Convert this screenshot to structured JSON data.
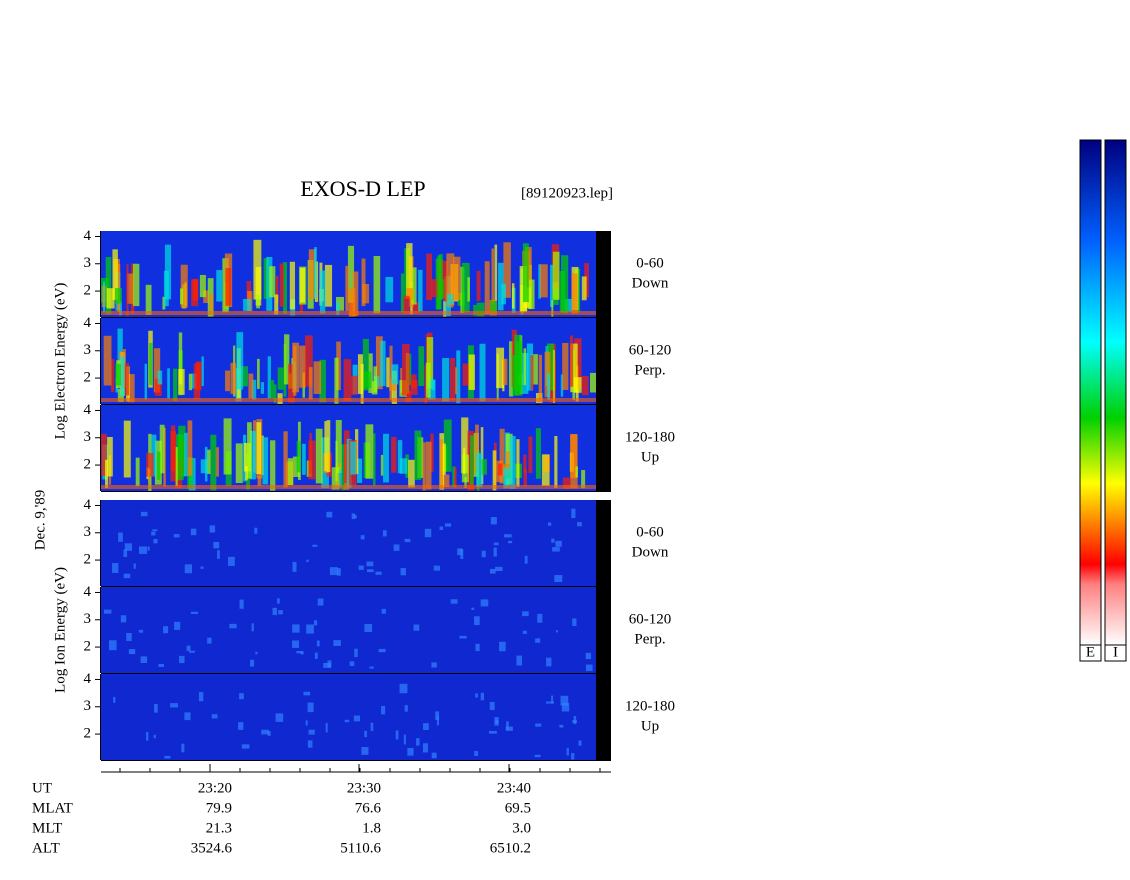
{
  "chart_data": {
    "type": "spectrogram",
    "title": "EXOS-D LEP",
    "subtitle": "[89120923.lep]",
    "date_label": "Dec. 9,'89",
    "groups": [
      {
        "ylabel": "Log  Electron  Energy (eV)",
        "panels": [
          {
            "label_top": "0-60",
            "label_bottom": "Down",
            "ylim": [
              1.05,
              4.2
            ],
            "yticks": [
              2,
              3,
              4
            ]
          },
          {
            "label_top": "60-120",
            "label_bottom": "Perp.",
            "ylim": [
              1.05,
              4.2
            ],
            "yticks": [
              2,
              3,
              4
            ]
          },
          {
            "label_top": "120-180",
            "label_bottom": "Up",
            "ylim": [
              1.05,
              4.2
            ],
            "yticks": [
              2,
              3,
              4
            ]
          }
        ]
      },
      {
        "ylabel": "Log  Ion  Energy (eV)",
        "panels": [
          {
            "label_top": "0-60",
            "label_bottom": "Down",
            "ylim": [
              1.05,
              4.2
            ],
            "yticks": [
              2,
              3,
              4
            ]
          },
          {
            "label_top": "60-120",
            "label_bottom": "Perp.",
            "ylim": [
              1.05,
              4.2
            ],
            "yticks": [
              2,
              3,
              4
            ]
          },
          {
            "label_top": "120-180",
            "label_bottom": "Up",
            "ylim": [
              1.05,
              4.2
            ],
            "yticks": [
              2,
              3,
              4
            ]
          }
        ]
      }
    ],
    "ephemeris": [
      {
        "name": "UT",
        "values": [
          "23:20",
          "23:30",
          "23:40"
        ]
      },
      {
        "name": "MLAT",
        "values": [
          "79.9",
          "76.6",
          "69.5"
        ]
      },
      {
        "name": "MLT",
        "values": [
          "21.3",
          "1.8",
          "3.0"
        ]
      },
      {
        "name": "ALT",
        "values": [
          "3524.6",
          "5110.6",
          "6510.2"
        ]
      }
    ],
    "colorbar_labels": [
      "E",
      "I"
    ]
  }
}
